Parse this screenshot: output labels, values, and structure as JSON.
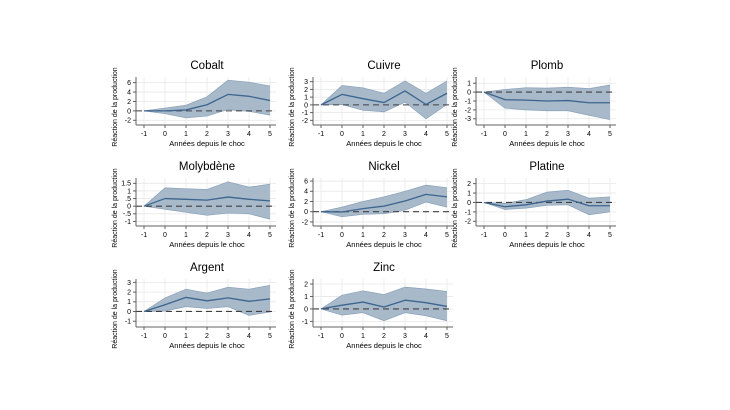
{
  "figure": {
    "ylabel": "Réaction de la production",
    "xlabel": "Années depuis le choc",
    "x_tick_labels": [
      "-1",
      "0",
      "1",
      "2",
      "3",
      "4",
      "5"
    ],
    "colors": {
      "background": "#ffffff",
      "band_fill": "#a3b5c7",
      "band_edge": "#8aa2ba",
      "response_line": "#3c658f",
      "zero_line": "#404040",
      "grid": "#e7e7e7",
      "axis": "#606060",
      "text": "#000000"
    }
  },
  "chart_data": [
    {
      "type": "area",
      "title": "Cobalt",
      "xlabel": "Années depuis le choc",
      "ylabel": "Réaction de la production",
      "x": [
        -1,
        0,
        1,
        2,
        3,
        4,
        5
      ],
      "series": [
        {
          "name": "réponse estimée",
          "values": [
            0,
            0,
            0.2,
            1.3,
            3.5,
            3.1,
            2.2
          ]
        },
        {
          "name": "bande supérieure",
          "values": [
            0,
            0.6,
            1.2,
            3.0,
            6.5,
            6.1,
            5.3
          ]
        },
        {
          "name": "bande inférieure",
          "values": [
            0,
            -0.6,
            -1.5,
            -1.1,
            0.3,
            -0.1,
            -0.9
          ]
        }
      ],
      "y_ticks": [
        -2,
        0,
        2,
        4,
        6
      ],
      "y_tick_labels": [
        "-2",
        "0",
        "2",
        "4",
        "6"
      ],
      "ylim": [
        -3.0,
        7.2
      ],
      "xlim": [
        -1,
        5
      ],
      "grid": true,
      "legend": false
    },
    {
      "type": "area",
      "title": "Cuivre",
      "xlabel": "Années depuis le choc",
      "ylabel": "Réaction de la production",
      "x": [
        -1,
        0,
        1,
        2,
        3,
        4,
        5
      ],
      "series": [
        {
          "name": "réponse estimée",
          "values": [
            0,
            1.35,
            0.8,
            0.3,
            1.8,
            0.05,
            1.5
          ]
        },
        {
          "name": "bande supérieure",
          "values": [
            0,
            2.5,
            2.2,
            1.5,
            3.1,
            1.5,
            3.1
          ]
        },
        {
          "name": "bande inférieure",
          "values": [
            0,
            0.05,
            -0.7,
            -0.9,
            0.35,
            -1.8,
            0.05
          ]
        }
      ],
      "y_ticks": [
        -2,
        -1,
        0,
        1,
        2,
        3
      ],
      "y_tick_labels": [
        "-2",
        "-1",
        "0",
        "1",
        "2",
        "3"
      ],
      "ylim": [
        -2.6,
        3.6
      ],
      "xlim": [
        -1,
        5
      ],
      "grid": true,
      "legend": false
    },
    {
      "type": "area",
      "title": "Plomb",
      "xlabel": "Années depuis le choc",
      "ylabel": "Réaction de la production",
      "x": [
        -1,
        0,
        1,
        2,
        3,
        4,
        5
      ],
      "series": [
        {
          "name": "réponse estimée",
          "values": [
            0,
            -0.85,
            -0.9,
            -1.0,
            -0.95,
            -1.2,
            -1.2
          ]
        },
        {
          "name": "bande supérieure",
          "values": [
            0,
            0.3,
            0.5,
            0.45,
            0.55,
            0.4,
            0.8
          ]
        },
        {
          "name": "bande inférieure",
          "values": [
            0,
            -1.8,
            -2.0,
            -2.1,
            -2.1,
            -2.6,
            -3.1
          ]
        }
      ],
      "y_ticks": [
        -3,
        -2,
        -1,
        0,
        1
      ],
      "y_tick_labels": [
        "-3",
        "-2",
        "-1",
        "0",
        "1"
      ],
      "ylim": [
        -3.7,
        1.7
      ],
      "xlim": [
        -1,
        5
      ],
      "grid": true,
      "legend": false
    },
    {
      "type": "area",
      "title": "Molybdène",
      "xlabel": "Années depuis le choc",
      "ylabel": "Réaction de la production",
      "x": [
        -1,
        0,
        1,
        2,
        3,
        4,
        5
      ],
      "series": [
        {
          "name": "réponse estimée",
          "values": [
            0,
            0.5,
            0.45,
            0.4,
            0.6,
            0.45,
            0.35
          ]
        },
        {
          "name": "bande supérieure",
          "values": [
            0,
            1.2,
            1.15,
            1.1,
            1.6,
            1.25,
            1.45
          ]
        },
        {
          "name": "bande inférieure",
          "values": [
            0,
            -0.2,
            -0.4,
            -0.6,
            -0.45,
            -0.5,
            -0.85
          ]
        }
      ],
      "y_ticks": [
        -1,
        -0.5,
        0,
        0.5,
        1,
        1.5
      ],
      "y_tick_labels": [
        "-1",
        "-.5",
        "0",
        ".5",
        "1",
        "1.5"
      ],
      "ylim": [
        -1.3,
        1.85
      ],
      "xlim": [
        -1,
        5
      ],
      "grid": true,
      "legend": false
    },
    {
      "type": "area",
      "title": "Nickel",
      "xlabel": "Années depuis le choc",
      "ylabel": "Réaction de la production",
      "x": [
        -1,
        0,
        1,
        2,
        3,
        4,
        5
      ],
      "series": [
        {
          "name": "réponse estimée",
          "values": [
            0,
            -0.05,
            0.6,
            1.1,
            2.1,
            3.4,
            2.9
          ]
        },
        {
          "name": "bande supérieure",
          "values": [
            0,
            0.9,
            2.0,
            2.9,
            4.0,
            5.2,
            4.7
          ]
        },
        {
          "name": "bande inférieure",
          "values": [
            0,
            -1.0,
            -0.5,
            -0.4,
            0.3,
            1.9,
            0.9
          ]
        }
      ],
      "y_ticks": [
        -2,
        0,
        2,
        4,
        6
      ],
      "y_tick_labels": [
        "-2",
        "0",
        "2",
        "4",
        "6"
      ],
      "ylim": [
        -2.8,
        6.6
      ],
      "xlim": [
        -1,
        5
      ],
      "grid": true,
      "legend": false
    },
    {
      "type": "area",
      "title": "Platine",
      "xlabel": "Années depuis le choc",
      "ylabel": "Réaction de la production",
      "x": [
        -1,
        0,
        1,
        2,
        3,
        4,
        5
      ],
      "series": [
        {
          "name": "réponse estimée",
          "values": [
            0,
            -0.45,
            -0.25,
            0.15,
            0.35,
            -0.35,
            -0.35
          ]
        },
        {
          "name": "bande supérieure",
          "values": [
            0,
            -0.1,
            0.3,
            1.1,
            1.3,
            0.45,
            0.6
          ]
        },
        {
          "name": "bande inférieure",
          "values": [
            0,
            -0.75,
            -0.6,
            -0.3,
            -0.25,
            -1.3,
            -1.0
          ]
        }
      ],
      "y_ticks": [
        -2,
        -1,
        0,
        1,
        2
      ],
      "y_tick_labels": [
        "-2",
        "-1",
        "0",
        "1",
        "2"
      ],
      "ylim": [
        -2.5,
        2.6
      ],
      "xlim": [
        -1,
        5
      ],
      "grid": true,
      "legend": false
    },
    {
      "type": "area",
      "title": "Argent",
      "xlabel": "Années depuis le choc",
      "ylabel": "Réaction de la production",
      "x": [
        -1,
        0,
        1,
        2,
        3,
        4,
        5
      ],
      "series": [
        {
          "name": "réponse estimée",
          "values": [
            0,
            0.7,
            1.45,
            1.1,
            1.4,
            1.05,
            1.3
          ]
        },
        {
          "name": "bande supérieure",
          "values": [
            0,
            1.4,
            2.3,
            1.9,
            2.5,
            2.3,
            2.7
          ]
        },
        {
          "name": "bande inférieure",
          "values": [
            0,
            0.05,
            0.5,
            0.3,
            0.5,
            -0.4,
            -0.05
          ]
        }
      ],
      "y_ticks": [
        -1,
        0,
        1,
        2,
        3
      ],
      "y_tick_labels": [
        "-1",
        "0",
        "1",
        "2",
        "3"
      ],
      "ylim": [
        -1.6,
        3.35
      ],
      "xlim": [
        -1,
        5
      ],
      "grid": true,
      "legend": false
    },
    {
      "type": "area",
      "title": "Zinc",
      "xlabel": "Années depuis le choc",
      "ylabel": "Réaction de la production",
      "x": [
        -1,
        0,
        1,
        2,
        3,
        4,
        5
      ],
      "series": [
        {
          "name": "réponse estimée",
          "values": [
            0,
            0.3,
            0.55,
            0.15,
            0.7,
            0.5,
            0.2
          ]
        },
        {
          "name": "bande supérieure",
          "values": [
            0,
            1.1,
            1.45,
            1.15,
            1.75,
            1.6,
            1.4
          ]
        },
        {
          "name": "bande inférieure",
          "values": [
            0,
            -0.5,
            -0.3,
            -0.95,
            -0.3,
            -0.55,
            -0.95
          ]
        }
      ],
      "y_ticks": [
        -1,
        0,
        1,
        2
      ],
      "y_tick_labels": [
        "-1",
        "0",
        "1",
        "2"
      ],
      "ylim": [
        -1.45,
        2.4
      ],
      "xlim": [
        -1,
        5
      ],
      "grid": true,
      "legend": false
    }
  ]
}
